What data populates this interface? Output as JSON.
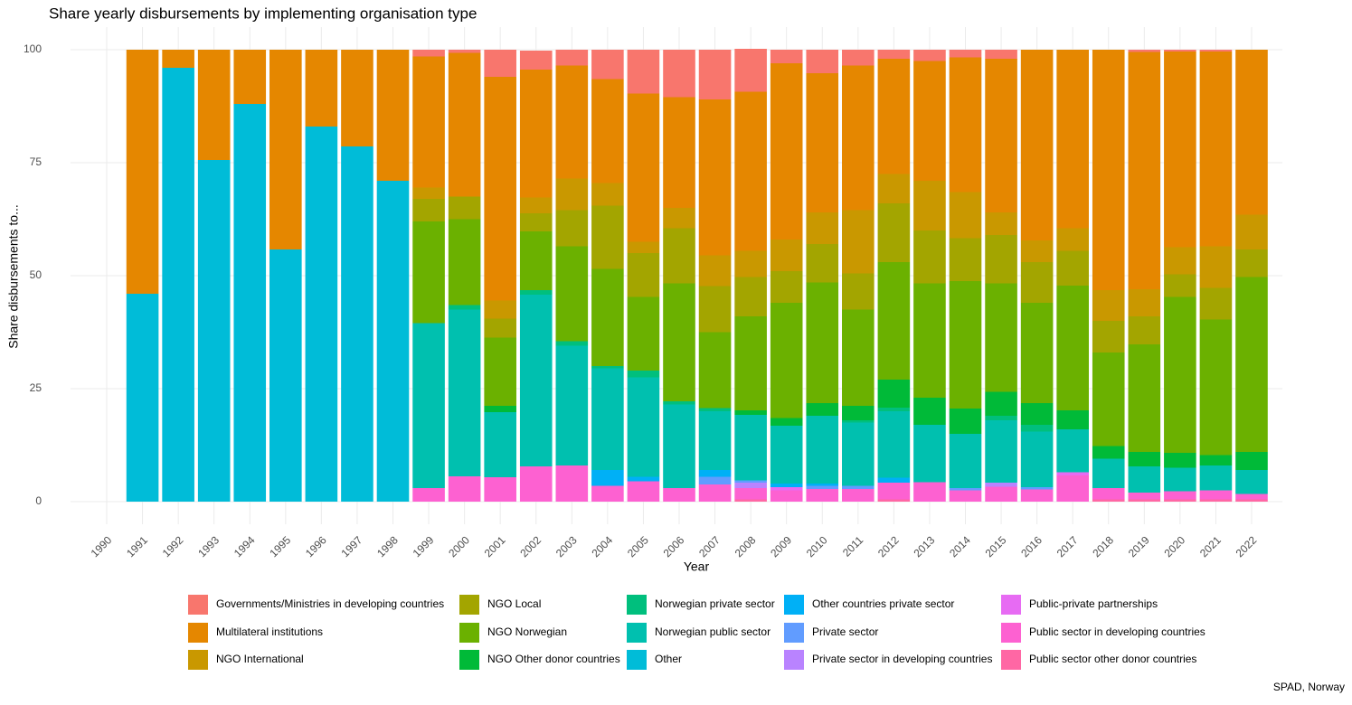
{
  "chart_data": {
    "type": "bar",
    "stacked": true,
    "grid": true,
    "legend": "bottom",
    "title": "Share yearly disbursements by implementing organisation type",
    "x_label": "Year",
    "y_label": "Share disbursements to...",
    "caption": "SPAD, Norway",
    "categories": [
      "1990",
      "1991",
      "1992",
      "1993",
      "1994",
      "1995",
      "1996",
      "1997",
      "1998",
      "1999",
      "2000",
      "2001",
      "2002",
      "2003",
      "2004",
      "2005",
      "2006",
      "2007",
      "2008",
      "2009",
      "2010",
      "2011",
      "2012",
      "2013",
      "2014",
      "2015",
      "2016",
      "2017",
      "2018",
      "2019",
      "2020",
      "2021",
      "2022"
    ],
    "ylim": [
      -5,
      105
    ],
    "yticks": [
      0,
      25,
      50,
      75,
      100
    ],
    "series": [
      {
        "name": "Governments/Ministries in developing countries",
        "color": "#F8766D",
        "values": [
          0,
          0,
          0,
          0,
          0,
          0,
          0,
          0,
          0,
          1.5,
          0.7,
          6,
          4.2,
          3.5,
          6.5,
          9.7,
          10.5,
          11,
          9.5,
          3,
          5.2,
          3.5,
          2,
          2.5,
          1.7,
          2,
          0,
          0,
          0,
          0.5,
          0.4,
          0.4,
          0
        ]
      },
      {
        "name": "Multilateral institutions",
        "color": "#E58700",
        "values": [
          0,
          54,
          4,
          24.4,
          12,
          44.2,
          17,
          21.4,
          29,
          29,
          31.8,
          49.5,
          28.3,
          25,
          23,
          32.8,
          24.5,
          34.5,
          35.2,
          39,
          30.8,
          32,
          25.5,
          26.5,
          29.8,
          34,
          42.2,
          39.5,
          53.2,
          52.5,
          43.3,
          43.1,
          36.5
        ]
      },
      {
        "name": "NGO International",
        "color": "#C99800",
        "values": [
          0,
          0,
          0,
          0,
          0,
          0,
          0,
          0,
          0,
          2.5,
          0,
          4,
          3.5,
          7,
          5,
          2.5,
          4.5,
          6.8,
          5.8,
          7,
          7,
          14,
          6.5,
          11,
          10.2,
          5,
          4.8,
          5,
          6.8,
          6,
          6,
          9.2,
          7.7
        ]
      },
      {
        "name": "NGO Local",
        "color": "#A3A500",
        "values": [
          0,
          0,
          0,
          0,
          0,
          0,
          0,
          0,
          0,
          5,
          5,
          4.2,
          4,
          8,
          14,
          9.7,
          12.2,
          10.2,
          8.7,
          7,
          8.5,
          8,
          13,
          11.7,
          9.5,
          10.7,
          9,
          7.7,
          7,
          6.2,
          5,
          7,
          6.1
        ]
      },
      {
        "name": "NGO Norwegian",
        "color": "#6BB100",
        "values": [
          0,
          0,
          0,
          0,
          0,
          0,
          0,
          0,
          0,
          22.5,
          19,
          15.1,
          13,
          21,
          21.5,
          16.3,
          26.1,
          16.8,
          20.8,
          25.5,
          26.7,
          21.3,
          26,
          25.3,
          28.2,
          24,
          22.2,
          27.6,
          20.7,
          23.8,
          34.5,
          30,
          38.7
        ]
      },
      {
        "name": "NGO Other donor countries",
        "color": "#00BA38",
        "values": [
          0,
          0,
          0,
          0,
          0,
          0,
          0,
          0,
          0,
          0,
          0,
          1.4,
          0,
          0,
          0,
          0,
          0,
          0,
          1,
          1.7,
          2.8,
          3.2,
          6.2,
          6,
          5.6,
          5.3,
          4.8,
          4.2,
          2.8,
          3.2,
          3.3,
          2.3,
          4
        ]
      },
      {
        "name": "Norwegian private sector",
        "color": "#00BF7D",
        "values": [
          0,
          0,
          0,
          0,
          0,
          0,
          0,
          0,
          0,
          0,
          1,
          0,
          1,
          1,
          0.5,
          1.5,
          0.7,
          0.7,
          0,
          0,
          0,
          0.5,
          0.8,
          0,
          0,
          1,
          1.5,
          0,
          0,
          0,
          0,
          0,
          0
        ]
      },
      {
        "name": "Norwegian public sector",
        "color": "#00C0AF",
        "values": [
          0,
          0,
          0,
          0,
          0,
          0,
          0,
          0,
          0,
          36.5,
          36.9,
          14.4,
          38,
          26.5,
          22.5,
          22,
          18.5,
          13,
          14.5,
          12.8,
          15,
          14,
          14.7,
          12.7,
          12,
          13.8,
          12.3,
          9.5,
          6.5,
          5.8,
          5.2,
          5.5,
          5.3
        ]
      },
      {
        "name": "Other",
        "color": "#00BCD8",
        "values": [
          0,
          46,
          96,
          75.6,
          88,
          55.8,
          83,
          78.6,
          71,
          0,
          0,
          0,
          0,
          0,
          0,
          0,
          0,
          0,
          0,
          0,
          0,
          0,
          0,
          0,
          0,
          0,
          0,
          0,
          0,
          0,
          0,
          0,
          0
        ]
      },
      {
        "name": "Other countries private sector",
        "color": "#00B0F6",
        "values": [
          0,
          0,
          0,
          0,
          0,
          0,
          0,
          0,
          0,
          0,
          0,
          0,
          0,
          0,
          3.5,
          1,
          0,
          1.5,
          0,
          0.8,
          0.5,
          0,
          1.1,
          0,
          0,
          0,
          0,
          0,
          0,
          0,
          0,
          0,
          0
        ]
      },
      {
        "name": "Private sector",
        "color": "#619CFF",
        "values": [
          0,
          0,
          0,
          0,
          0,
          0,
          0,
          0,
          0,
          0,
          0,
          0,
          0,
          0,
          0,
          0,
          0,
          1.7,
          0.5,
          0,
          0.7,
          0.7,
          0,
          0,
          0.5,
          0,
          0.5,
          0,
          0,
          0,
          0,
          0,
          0
        ]
      },
      {
        "name": "Private sector in developing countries",
        "color": "#B983FF",
        "values": [
          0,
          0,
          0,
          0,
          0,
          0,
          0,
          0,
          0,
          0,
          0,
          0,
          0,
          0,
          0,
          0,
          0,
          0,
          1.2,
          0,
          0,
          0,
          0,
          0,
          0,
          0.9,
          0,
          0,
          0,
          0,
          0,
          0,
          0
        ]
      },
      {
        "name": "Public-private partnerships",
        "color": "#E76BF3",
        "values": [
          0,
          0,
          0,
          0,
          0,
          0,
          0,
          0,
          0,
          0,
          0,
          0,
          0,
          0,
          0,
          0,
          0,
          0,
          0,
          0.7,
          0,
          0,
          0,
          0,
          0,
          0,
          0,
          0.7,
          0,
          0,
          0,
          0,
          0
        ]
      },
      {
        "name": "Public sector in developing countries",
        "color": "#FD61D1",
        "values": [
          0,
          0,
          0,
          0,
          0,
          0,
          0,
          0,
          0,
          3,
          5.6,
          5.4,
          7.8,
          8,
          3.5,
          4.5,
          3,
          3.8,
          2.5,
          2.5,
          2.8,
          2.8,
          3.7,
          4.3,
          2.5,
          3.3,
          2.7,
          5.8,
          2.5,
          1.5,
          1.8,
          2,
          1.2
        ]
      },
      {
        "name": "Public sector other donor countries",
        "color": "#FF67A4",
        "values": [
          0,
          0,
          0,
          0,
          0,
          0,
          0,
          0,
          0,
          0,
          0,
          0,
          0,
          0,
          0,
          0,
          0,
          0,
          0.5,
          0,
          0,
          0,
          0.5,
          0,
          0,
          0,
          0,
          0,
          0.5,
          0.5,
          0.5,
          0.5,
          0.5
        ]
      }
    ]
  }
}
